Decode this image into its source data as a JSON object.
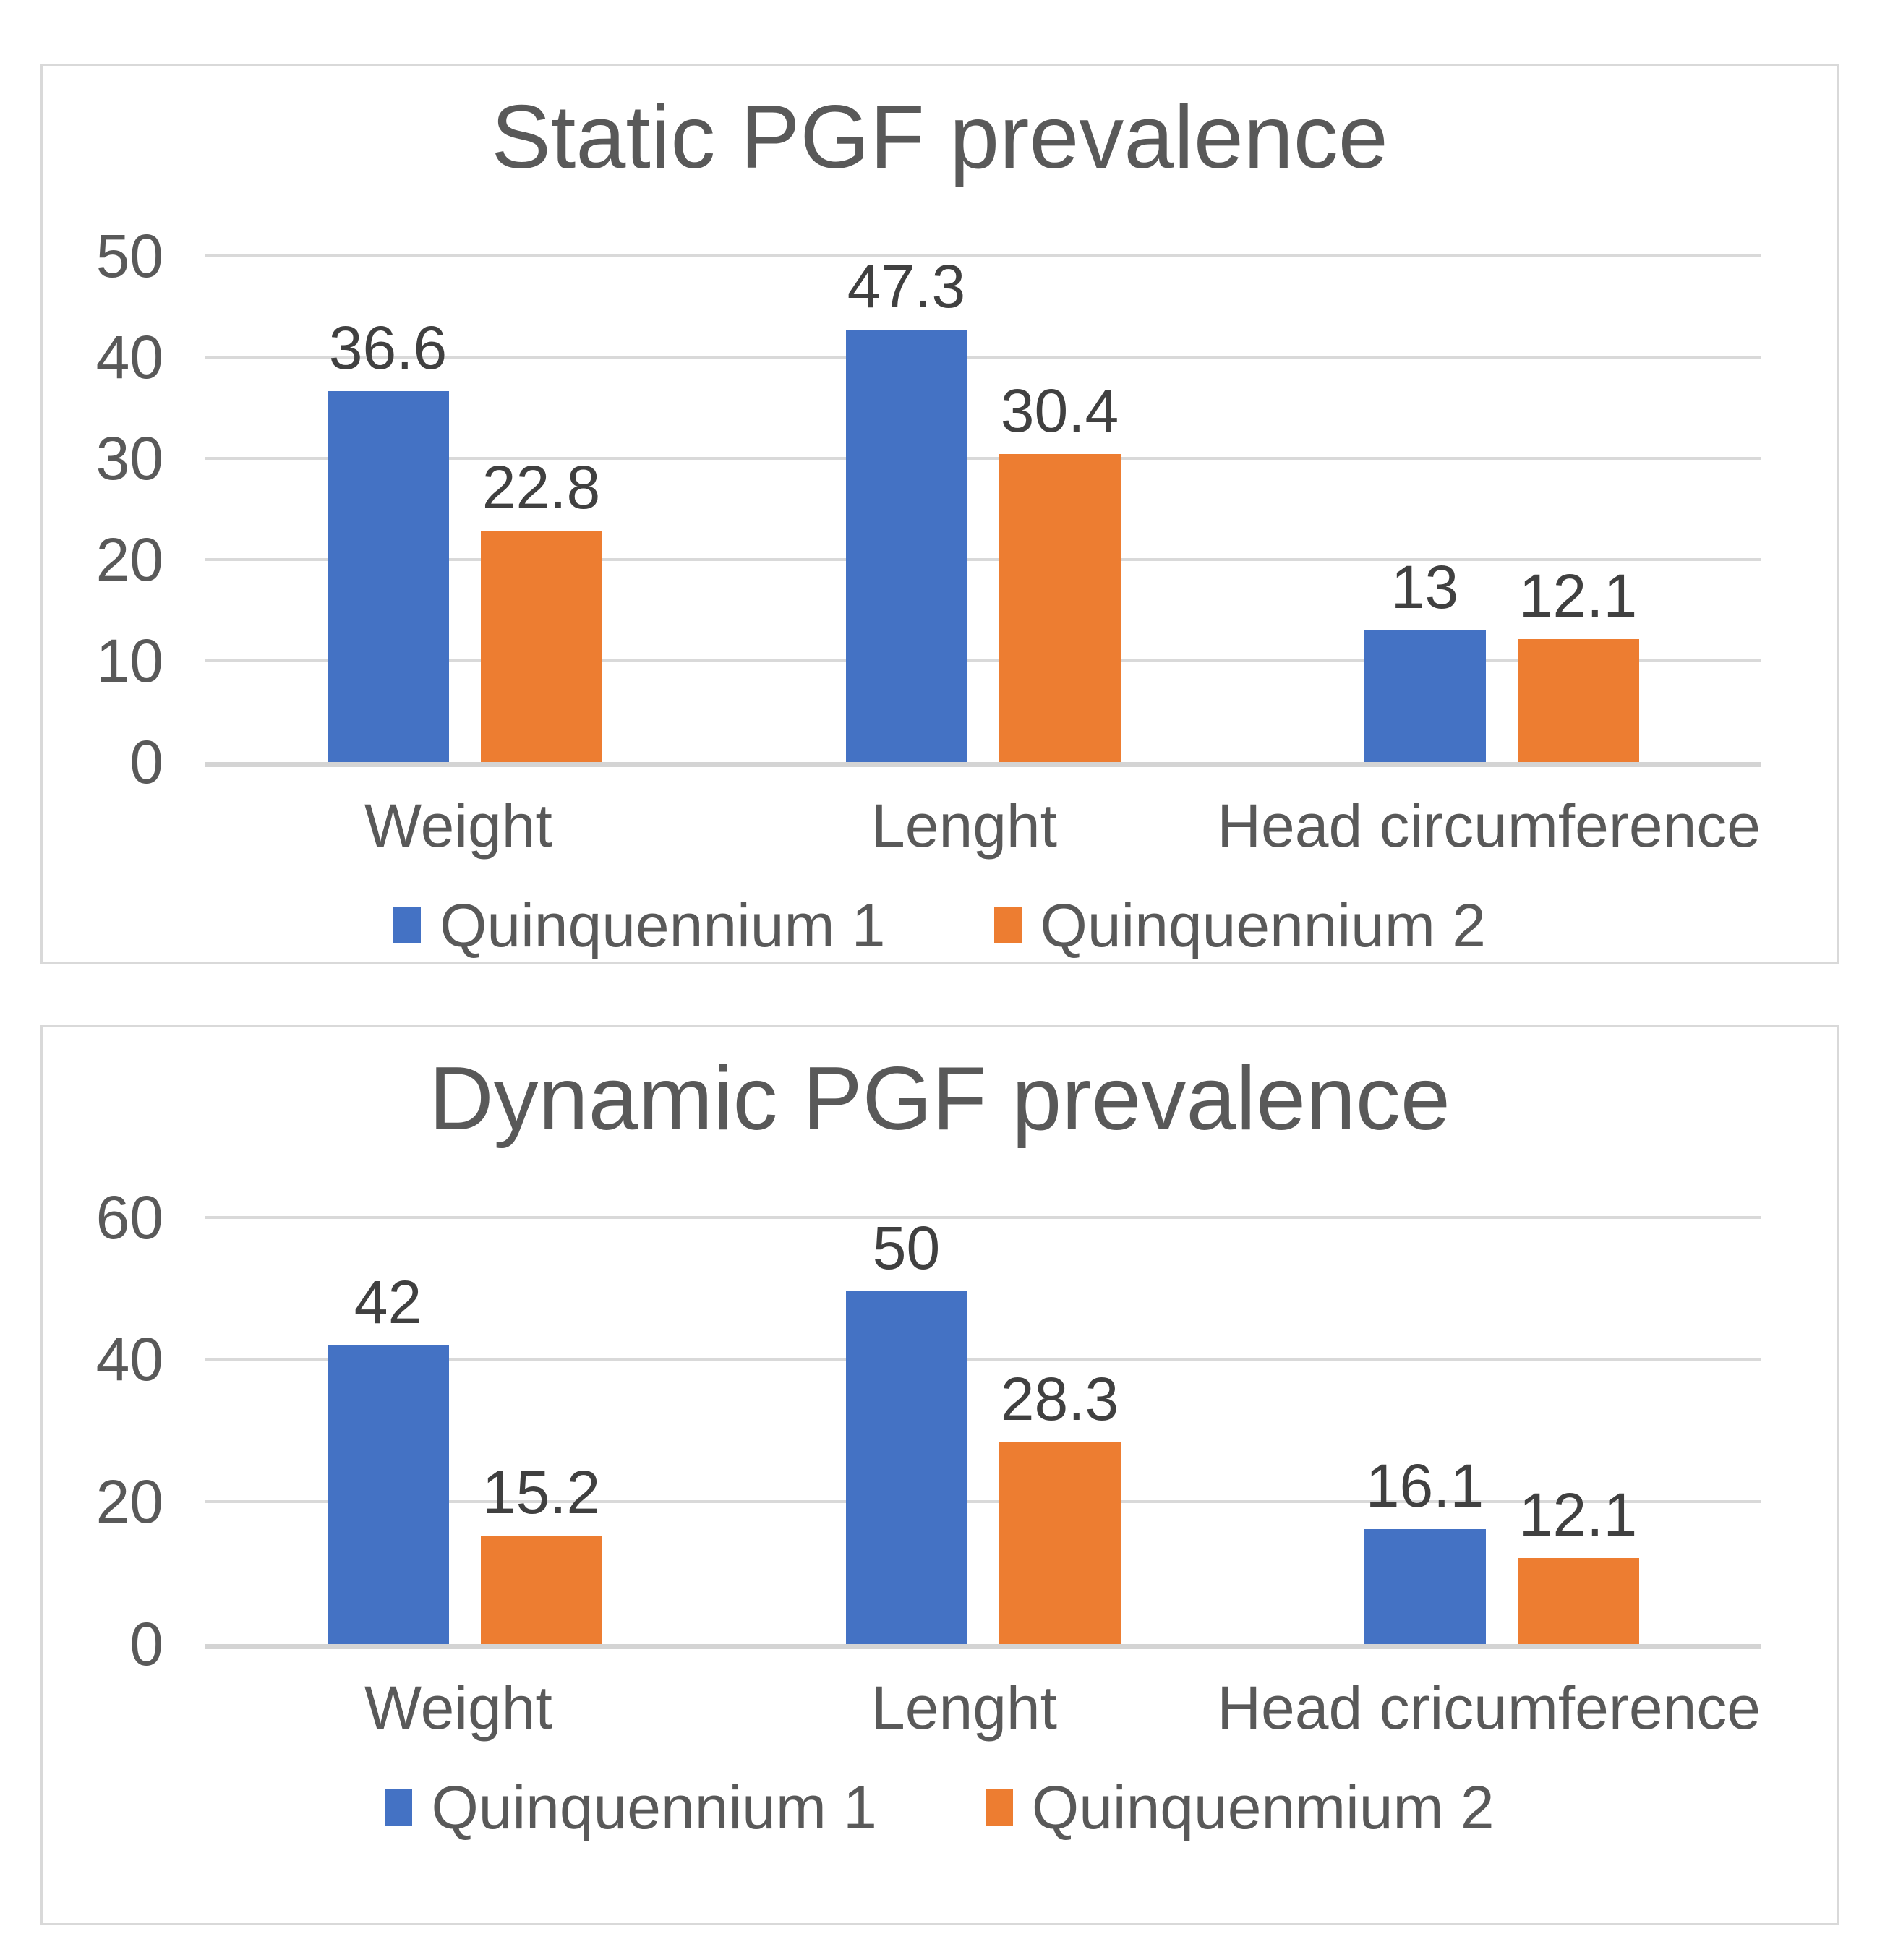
{
  "page": {
    "background": "#FFFFFF"
  },
  "chart_data": [
    {
      "type": "bar",
      "title": "Static PGF prevalence",
      "categories": [
        "Weight",
        "Lenght",
        "Head circumference"
      ],
      "series": [
        {
          "name": "Quinquennium 1",
          "color": "#4472C4",
          "values": [
            36.6,
            47.3,
            13
          ]
        },
        {
          "name": "Quinquennium 2",
          "color": "#ED7D31",
          "values": [
            22.8,
            30.4,
            12.1
          ]
        }
      ],
      "data_labels": [
        [
          "36.6",
          "47.3",
          "13"
        ],
        [
          "22.8",
          "30.4",
          "12.1"
        ]
      ],
      "ylim": [
        0,
        50
      ],
      "yticks": [
        50,
        40,
        30,
        20,
        10,
        0
      ],
      "grid": true,
      "legend_position": "bottom"
    },
    {
      "type": "bar",
      "title": "Dynamic PGF prevalence",
      "categories": [
        "Weight",
        "Lenght",
        "Head cricumference"
      ],
      "series": [
        {
          "name": "Quinquennium 1",
          "color": "#4472C4",
          "values": [
            42,
            50,
            16.1
          ]
        },
        {
          "name": "Quinquenmium 2",
          "color": "#ED7D31",
          "values": [
            15.2,
            28.3,
            12.1
          ]
        }
      ],
      "data_labels": [
        [
          "42",
          "50",
          "16.1"
        ],
        [
          "15.2",
          "28.3",
          "12.1"
        ]
      ],
      "ylim": [
        0,
        60
      ],
      "yticks": [
        60,
        40,
        20,
        0
      ],
      "grid": true,
      "legend_position": "bottom"
    }
  ],
  "style": {
    "series_blue": "#4472C4",
    "series_orange": "#ED7D31",
    "title_color": "#595959",
    "axis_label_color": "#595959",
    "data_label_color": "#404040",
    "gridline_color": "#D9D9D9",
    "panel_border_color": "#D9D9D9"
  }
}
